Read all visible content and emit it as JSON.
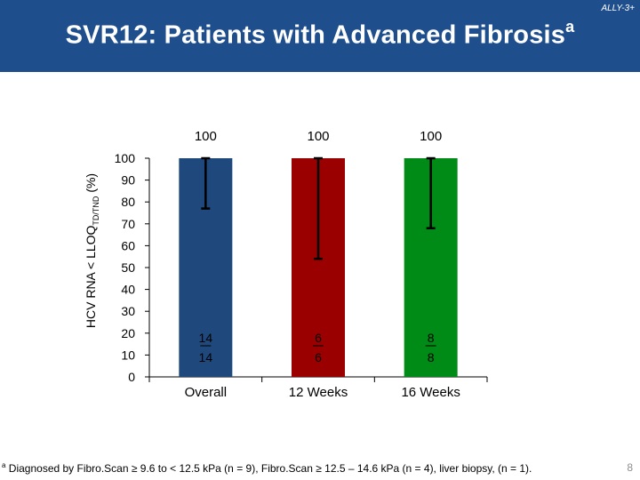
{
  "header": {
    "study_label": "ALLY-3+",
    "title": "SVR12: Patients with Advanced Fibrosis",
    "title_sup": "a"
  },
  "chart_data": {
    "type": "bar",
    "title": "SVR12: Patients with Advanced Fibrosis",
    "categories": [
      "Overall",
      "12 Weeks",
      "16 Weeks"
    ],
    "values": [
      100,
      100,
      100
    ],
    "value_labels": [
      "100",
      "100",
      "100"
    ],
    "colors": [
      "#1f497d",
      "#9b0000",
      "#008a16"
    ],
    "error_lower": [
      77,
      54,
      68
    ],
    "error_upper": [
      100,
      100,
      100
    ],
    "numerators": [
      "14",
      "6",
      "8"
    ],
    "denominators": [
      "14",
      "6",
      "8"
    ],
    "ylabel_main": "HCV RNA < LLOQ",
    "ylabel_sub": "TD/TND",
    "ylabel_suffix": " (%)",
    "xlabel": "",
    "ylim": [
      0,
      100
    ],
    "yticks": [
      0,
      10,
      20,
      30,
      40,
      50,
      60,
      70,
      80,
      90,
      100
    ],
    "grid": false
  },
  "footnote": {
    "marker": "a",
    "text": " Diagnosed by Fibro.Scan ≥ 9.6 to < 12.5 kPa (n = 9), Fibro.Scan ≥ 12.5 – 14.6 kPa (n = 4), liver biopsy, (n = 1)."
  },
  "page_number": "8"
}
